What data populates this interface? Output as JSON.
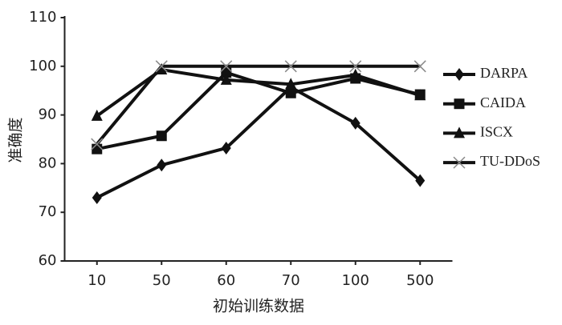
{
  "chart_data": {
    "type": "line",
    "x_label": "初始训练数据",
    "y_label": "准确度",
    "categories": [
      "10",
      "50",
      "60",
      "70",
      "100",
      "500"
    ],
    "series": [
      {
        "name": "DARPA",
        "color": "#111111",
        "marker": "diamond",
        "values": [
          73,
          79.7,
          83.2,
          95.7,
          88.3,
          76.5
        ]
      },
      {
        "name": "CAIDA",
        "color": "#111111",
        "marker": "square",
        "values": [
          83,
          85.7,
          98.7,
          94.5,
          97.5,
          94.2
        ]
      },
      {
        "name": "ISCX",
        "color": "#111111",
        "marker": "triangle",
        "values": [
          89.8,
          99.3,
          97.2,
          96.3,
          98.2,
          94
        ]
      },
      {
        "name": "TU-DDoS",
        "color": "#111111",
        "marker": "x",
        "values": [
          84,
          100,
          100,
          100,
          100,
          100
        ]
      }
    ],
    "ylim": [
      60,
      110
    ],
    "yticks": [
      60,
      70,
      80,
      90,
      100,
      110
    ],
    "grid": false,
    "legend": "right"
  }
}
